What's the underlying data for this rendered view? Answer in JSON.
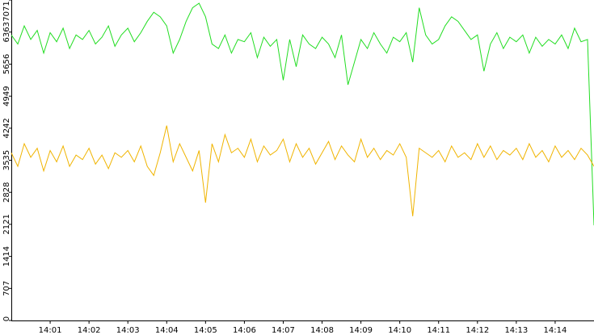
{
  "chart_data": {
    "type": "line",
    "x": [
      "14:00:00",
      "14:00:10",
      "14:00:20",
      "14:00:30",
      "14:00:40",
      "14:00:50",
      "14:01:00",
      "14:01:10",
      "14:01:20",
      "14:01:30",
      "14:01:40",
      "14:01:50",
      "14:02:00",
      "14:02:10",
      "14:02:20",
      "14:02:30",
      "14:02:40",
      "14:02:50",
      "14:03:00",
      "14:03:10",
      "14:03:20",
      "14:03:30",
      "14:03:40",
      "14:03:50",
      "14:04:00",
      "14:04:10",
      "14:04:20",
      "14:04:30",
      "14:04:40",
      "14:04:50",
      "14:05:00",
      "14:05:10",
      "14:05:20",
      "14:05:30",
      "14:05:40",
      "14:05:50",
      "14:06:00",
      "14:06:10",
      "14:06:20",
      "14:06:30",
      "14:06:40",
      "14:06:50",
      "14:07:00",
      "14:07:10",
      "14:07:20",
      "14:07:30",
      "14:07:40",
      "14:07:50",
      "14:08:00",
      "14:08:10",
      "14:08:20",
      "14:08:30",
      "14:08:40",
      "14:08:50",
      "14:09:00",
      "14:09:10",
      "14:09:20",
      "14:09:30",
      "14:09:40",
      "14:09:50",
      "14:10:00",
      "14:10:10",
      "14:10:20",
      "14:10:30",
      "14:10:40",
      "14:10:50",
      "14:11:00",
      "14:11:10",
      "14:11:20",
      "14:11:30",
      "14:11:40",
      "14:11:50",
      "14:12:00",
      "14:12:10",
      "14:12:20",
      "14:12:30",
      "14:12:40",
      "14:12:50",
      "14:13:00",
      "14:13:10",
      "14:13:20",
      "14:13:30",
      "14:13:40",
      "14:13:50",
      "14:14:00",
      "14:14:10",
      "14:14:20",
      "14:14:30",
      "14:14:40",
      "14:14:50",
      "14:15:00"
    ],
    "series": [
      {
        "color": "#22dd22",
        "values": [
          6300,
          6100,
          6500,
          6200,
          6400,
          5900,
          6350,
          6150,
          6450,
          6000,
          6300,
          6200,
          6400,
          6100,
          6250,
          6500,
          6050,
          6300,
          6450,
          6150,
          6350,
          6600,
          6800,
          6700,
          6500,
          5900,
          6200,
          6600,
          6900,
          7000,
          6700,
          6100,
          6000,
          6300,
          5900,
          6200,
          6150,
          6350,
          5800,
          6250,
          6050,
          6200,
          5300,
          6200,
          5600,
          6300,
          6100,
          6000,
          6250,
          6100,
          5800,
          6300,
          5200,
          5700,
          6200,
          6000,
          6350,
          6100,
          5900,
          6250,
          6150,
          6350,
          5700,
          6900,
          6300,
          6100,
          6200,
          6500,
          6700,
          6600,
          6400,
          6200,
          6300,
          5500,
          6100,
          6350,
          6000,
          6250,
          6150,
          6300,
          5900,
          6250,
          6050,
          6200,
          6100,
          6300,
          6000,
          6450,
          6150,
          6200,
          2100
        ]
      },
      {
        "color": "#f0b400",
        "values": [
          3700,
          3400,
          3900,
          3600,
          3800,
          3300,
          3750,
          3500,
          3850,
          3400,
          3650,
          3550,
          3800,
          3450,
          3650,
          3350,
          3700,
          3600,
          3750,
          3500,
          3850,
          3400,
          3200,
          3700,
          4300,
          3500,
          3900,
          3600,
          3300,
          3750,
          2600,
          3900,
          3500,
          4100,
          3700,
          3800,
          3600,
          4000,
          3500,
          3850,
          3650,
          3750,
          4000,
          3500,
          3900,
          3600,
          3800,
          3450,
          3700,
          3950,
          3550,
          3850,
          3650,
          3500,
          4000,
          3600,
          3800,
          3550,
          3750,
          3650,
          3900,
          3600,
          2300,
          3800,
          3700,
          3600,
          3750,
          3500,
          3850,
          3600,
          3700,
          3550,
          3900,
          3600,
          3850,
          3550,
          3750,
          3650,
          3800,
          3550,
          3900,
          3600,
          3750,
          3500,
          3850,
          3600,
          3750,
          3550,
          3800,
          3650,
          3400
        ]
      }
    ],
    "xlim": [
      "14:00:00",
      "14:15:00"
    ],
    "xticks": [
      "14:01",
      "14:02",
      "14:03",
      "14:04",
      "14:05",
      "14:06",
      "14:07",
      "14:08",
      "14:09",
      "14:10",
      "14:11",
      "14:12",
      "14:13",
      "14:14"
    ],
    "ylim": [
      0,
      7071
    ],
    "yticks": [
      0,
      707,
      1414,
      2121,
      2828,
      3535,
      4242,
      4949,
      5656,
      6363,
      7071
    ]
  }
}
